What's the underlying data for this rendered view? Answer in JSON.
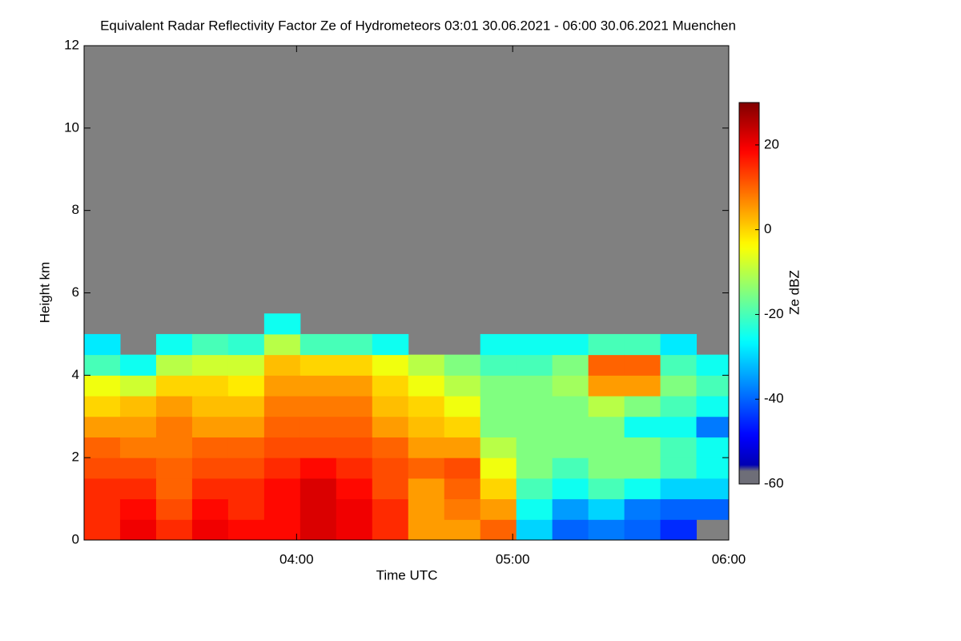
{
  "chart_data": {
    "type": "heatmap",
    "title": "Equivalent Radar Reflectivity Factor Ze of Hydrometeors   03:01 30.06.2021 - 06:00 30.06.2021 Muenchen",
    "x_label": "Time UTC",
    "y_label": "Height km",
    "colorbar_label": "Ze dBZ",
    "colormap": "jet",
    "background": "#808080",
    "xlim": [
      "03:01",
      "06:00"
    ],
    "xticks": [
      "04:00",
      "05:00",
      "06:00"
    ],
    "ylim": [
      0,
      12
    ],
    "yticks": [
      0,
      2,
      4,
      6,
      8,
      10,
      12
    ],
    "zlim": [
      -60,
      30
    ],
    "zticks": [
      -60,
      -40,
      -20,
      0,
      20
    ],
    "x_bins": [
      "03:01",
      "03:11",
      "03:21",
      "03:31",
      "03:41",
      "03:51",
      "04:01",
      "04:11",
      "04:21",
      "04:31",
      "04:41",
      "04:51",
      "05:01",
      "05:11",
      "05:21",
      "05:31",
      "05:41",
      "05:51",
      "06:00"
    ],
    "y_bins": [
      0,
      0.5,
      1,
      1.5,
      2,
      2.5,
      3,
      3.5,
      4,
      4.5,
      5,
      5.5,
      6
    ],
    "z": [
      [
        15,
        15,
        15,
        12,
        10,
        5,
        0,
        -5,
        -20,
        -28,
        null,
        null
      ],
      [
        20,
        18,
        15,
        12,
        8,
        5,
        2,
        -8,
        -25,
        null,
        null,
        null
      ],
      [
        15,
        12,
        10,
        10,
        8,
        8,
        5,
        0,
        -10,
        -25,
        null,
        null
      ],
      [
        20,
        18,
        15,
        12,
        10,
        5,
        2,
        0,
        -8,
        -20,
        null,
        null
      ],
      [
        18,
        15,
        15,
        12,
        10,
        5,
        2,
        -2,
        -8,
        -22,
        null,
        null
      ],
      [
        18,
        18,
        18,
        15,
        12,
        10,
        8,
        5,
        2,
        -10,
        -25,
        null
      ],
      [
        22,
        22,
        22,
        18,
        12,
        10,
        8,
        5,
        0,
        -20,
        null,
        null
      ],
      [
        20,
        20,
        18,
        15,
        12,
        10,
        8,
        5,
        0,
        -20,
        null,
        null
      ],
      [
        15,
        15,
        12,
        12,
        10,
        5,
        2,
        0,
        -5,
        -25,
        null,
        null
      ],
      [
        5,
        5,
        5,
        10,
        5,
        2,
        0,
        -5,
        -10,
        null,
        null,
        null
      ],
      [
        5,
        8,
        10,
        12,
        5,
        0,
        -5,
        -10,
        -15,
        null,
        null,
        null
      ],
      [
        10,
        5,
        0,
        -5,
        -10,
        -15,
        -15,
        -15,
        -20,
        -25,
        null,
        null
      ],
      [
        -30,
        -25,
        -20,
        -15,
        -15,
        -15,
        -15,
        -15,
        -20,
        -25,
        null,
        null
      ],
      [
        -40,
        -35,
        -25,
        -20,
        -15,
        -15,
        -15,
        -12,
        -15,
        -25,
        null,
        null
      ],
      [
        -38,
        -30,
        -20,
        -15,
        -15,
        -15,
        -10,
        5,
        10,
        -20,
        null,
        null
      ],
      [
        -40,
        -38,
        -25,
        -15,
        -15,
        -25,
        -15,
        5,
        10,
        -20,
        null,
        null
      ],
      [
        -45,
        -40,
        -30,
        -20,
        -20,
        -25,
        -20,
        -15,
        -20,
        -28,
        null,
        null
      ],
      [
        null,
        -40,
        -30,
        -25,
        -25,
        -38,
        -25,
        -20,
        -25,
        null,
        null,
        null
      ]
    ]
  }
}
